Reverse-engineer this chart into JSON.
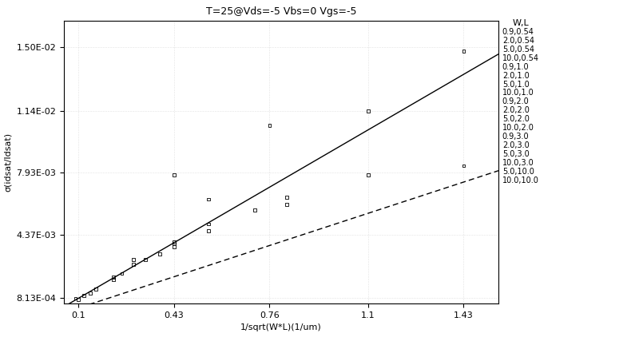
{
  "title": "T=25@Vds=-5 Vbs=0 Vgs=-5",
  "xlabel": "1/sqrt(W*L)(1/um)",
  "ylabel": "σ(idsat/Idsat)",
  "xlim": [
    0.05,
    1.55
  ],
  "ylim": [
    0.0005,
    0.0165
  ],
  "xticks": [
    0.1,
    0.43,
    0.76,
    1.1,
    1.43
  ],
  "yticks": [
    0.000813,
    0.00437,
    0.00793,
    0.0114,
    0.015
  ],
  "ytick_labels": [
    "8.13E-04",
    "4.37E-03",
    "7.93E-03",
    "1.14E-02",
    "1.50E-02"
  ],
  "legend_labels": [
    "0.9,0.54",
    "2.0,0.54",
    "5.0,0.54",
    "10.0,0.54",
    "0.9,1.0",
    "2.0,1.0",
    "5.0,1.0",
    "10.0,1.0",
    "0.9,2.0",
    "2.0,2.0",
    "5.0,2.0",
    "10.0,2.0",
    "0.9,3.0",
    "2.0,3.0",
    "5.0,3.0",
    "10.0,3.0",
    "5.0,10.0",
    "10.0,10.0"
  ],
  "legend_title": "W,L",
  "line1_slope": 0.009524,
  "line1_intercept": -0.0001524,
  "line2_slope": 0.005357,
  "line2_intercept": -0.0002857,
  "scatter_x": [
    0.09,
    0.1,
    0.12,
    0.14,
    0.16,
    0.22,
    0.22,
    0.25,
    0.29,
    0.29,
    0.33,
    0.38,
    0.43,
    0.43,
    0.43,
    0.43,
    0.55,
    0.55,
    0.55,
    0.71,
    0.76,
    0.82,
    0.82,
    1.1,
    1.1,
    1.43,
    1.43
  ],
  "scatter_y": [
    0.0008,
    0.00074,
    0.00095,
    0.0011,
    0.0013,
    0.00185,
    0.002,
    0.0022,
    0.0027,
    0.003,
    0.003,
    0.0033,
    0.0037,
    0.0039,
    0.004,
    0.0078,
    0.0046,
    0.005,
    0.0064,
    0.0058,
    0.0106,
    0.0061,
    0.0065,
    0.0078,
    0.0114,
    0.0083,
    0.0148
  ],
  "line1_color": "#000000",
  "line2_color": "#000000",
  "scatter_color": "#000000",
  "bg_color": "#ffffff",
  "title_fontsize": 9,
  "label_fontsize": 8,
  "tick_fontsize": 8,
  "legend_fontsize": 7
}
